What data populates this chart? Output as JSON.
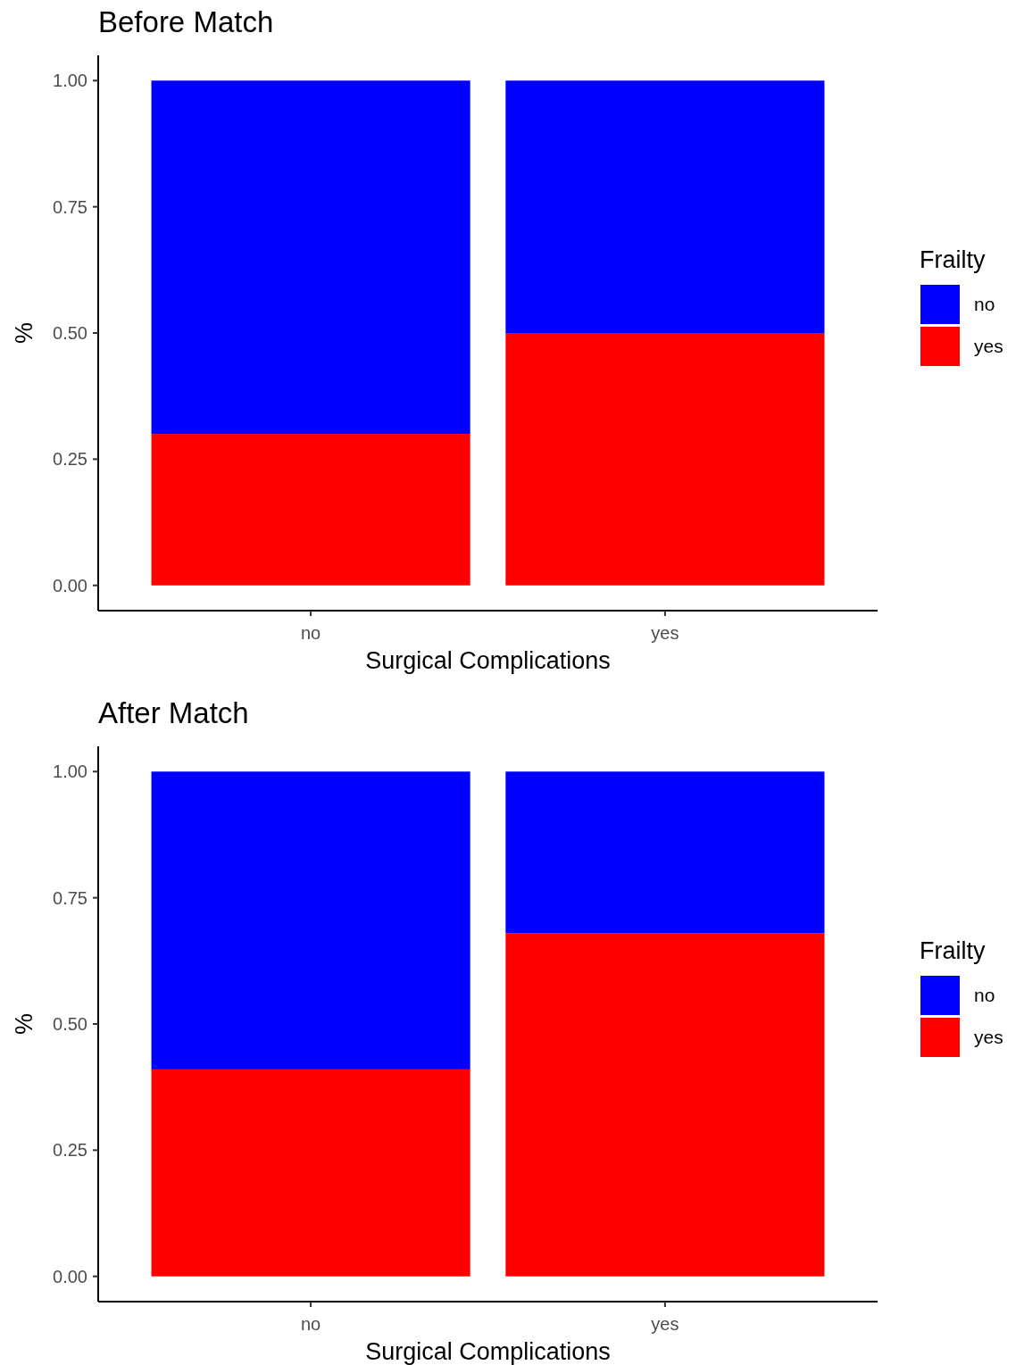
{
  "chart_data": [
    {
      "type": "bar",
      "title": "Before Match",
      "xlabel": "Surgical Complications",
      "ylabel": "%",
      "legend_title": "Frailty",
      "categories": [
        "no",
        "yes"
      ],
      "stacked": true,
      "legend": "right",
      "ylim": [
        -0.05,
        1.05
      ],
      "yticks": [
        {
          "value": 0,
          "label": "0.00"
        },
        {
          "value": 0.25,
          "label": "0.25"
        },
        {
          "value": 0.5,
          "label": "0.50"
        },
        {
          "value": 0.75,
          "label": "0.75"
        },
        {
          "value": 1,
          "label": "1.00"
        }
      ],
      "grid": false,
      "series": [
        {
          "name": "yes",
          "color": "#ff0000",
          "values": [
            0.3,
            0.5
          ]
        },
        {
          "name": "no",
          "color": "#0000ff",
          "values": [
            0.7,
            0.5
          ]
        }
      ]
    },
    {
      "type": "bar",
      "title": "After Match",
      "xlabel": "Surgical Complications",
      "ylabel": "%",
      "legend_title": "Frailty",
      "categories": [
        "no",
        "yes"
      ],
      "stacked": true,
      "legend": "right",
      "ylim": [
        -0.05,
        1.05
      ],
      "yticks": [
        {
          "value": 0,
          "label": "0.00"
        },
        {
          "value": 0.25,
          "label": "0.25"
        },
        {
          "value": 0.5,
          "label": "0.50"
        },
        {
          "value": 0.75,
          "label": "0.75"
        },
        {
          "value": 1,
          "label": "1.00"
        }
      ],
      "grid": false,
      "series": [
        {
          "name": "yes",
          "color": "#ff0000",
          "values": [
            0.41,
            0.68
          ]
        },
        {
          "name": "no",
          "color": "#0000ff",
          "values": [
            0.59,
            0.32
          ]
        }
      ]
    }
  ]
}
